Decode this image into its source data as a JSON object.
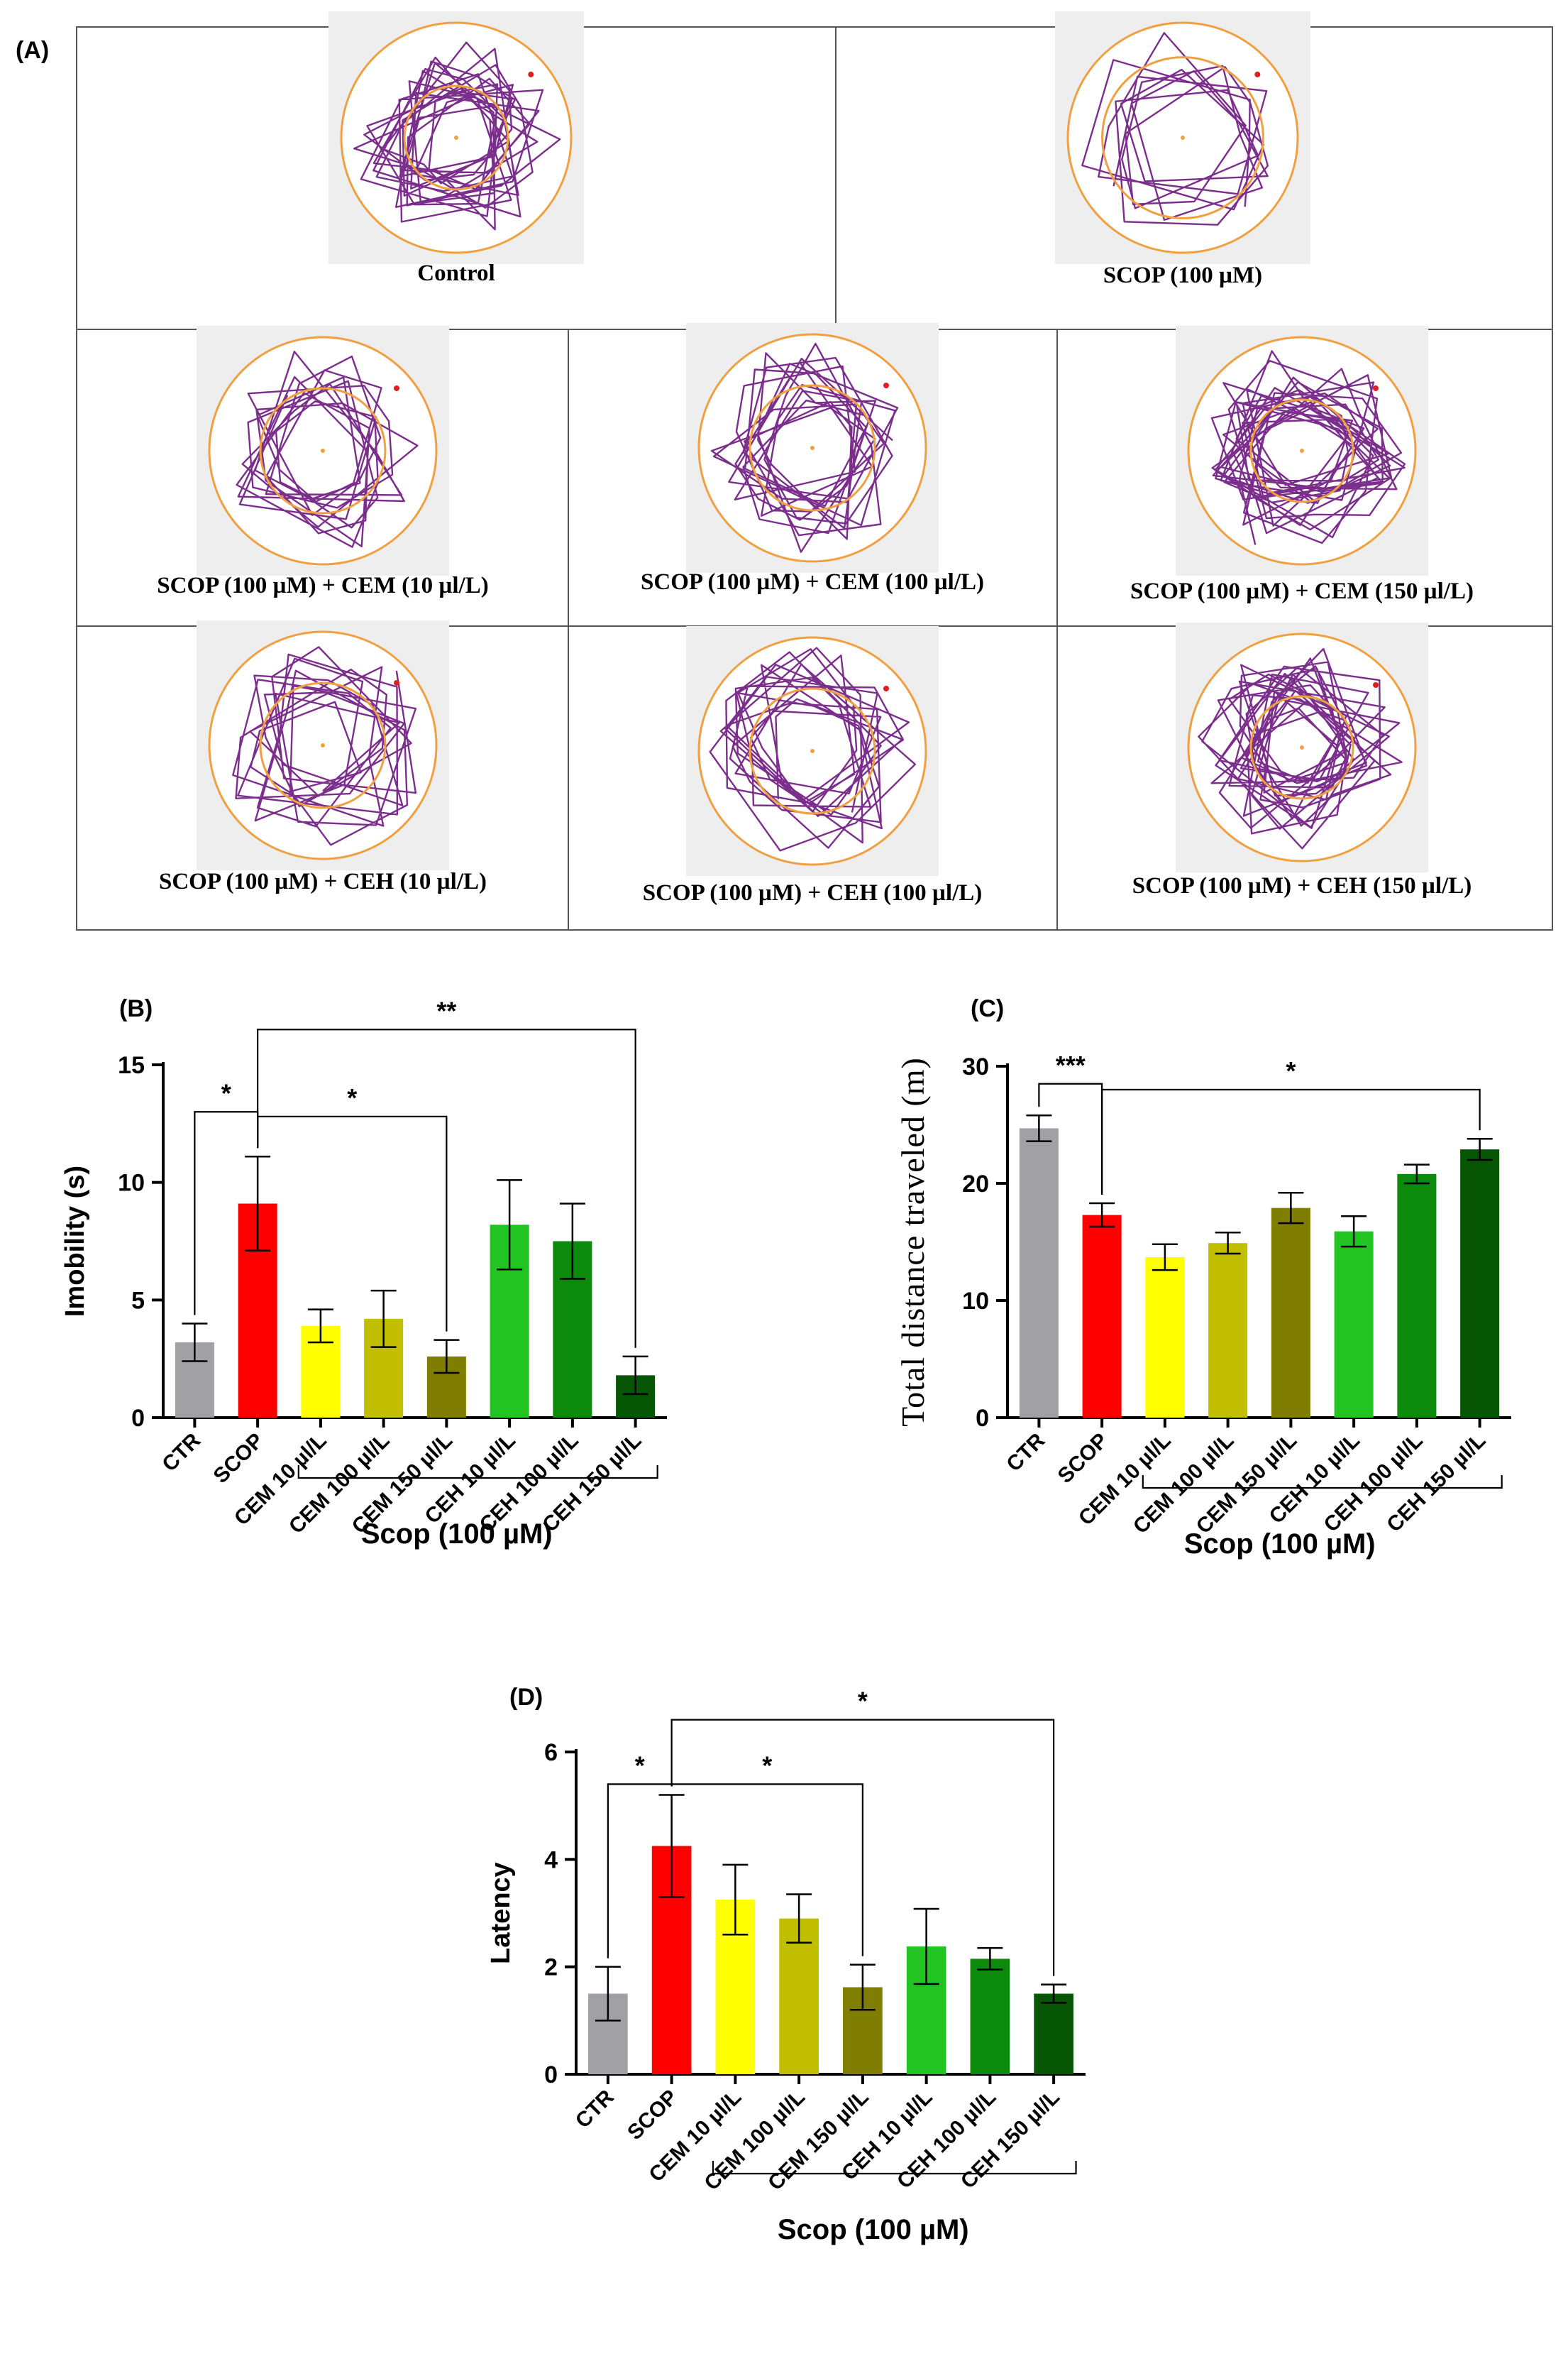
{
  "panel_a": {
    "label": "(A)",
    "tracks": [
      {
        "caption": "Control",
        "density": 90,
        "inner": 0.45
      },
      {
        "caption": "SCOP (100 µM)",
        "density": 40,
        "inner": 0.7
      },
      {
        "caption": "SCOP (100 µM) + CEM (10 µl/L)",
        "density": 60,
        "inner": 0.55
      },
      {
        "caption": "SCOP (100 µM) + CEM (100 µl/L)",
        "density": 70,
        "inner": 0.55
      },
      {
        "caption": "SCOP (100 µM) + CEM (150 µl/L)",
        "density": 110,
        "inner": 0.45
      },
      {
        "caption": "SCOP (100 µM) + CEH (10 µl/L)",
        "density": 60,
        "inner": 0.55
      },
      {
        "caption": "SCOP (100 µM) + CEH (100 µl/L)",
        "density": 70,
        "inner": 0.55
      },
      {
        "caption": "SCOP (100 µM) + CEH (150 µl/L)",
        "density": 105,
        "inner": 0.45
      }
    ]
  },
  "chart_data": [
    {
      "panel": "(B)",
      "type": "bar",
      "ylabel": "Imobility (s)",
      "ylim": [
        0,
        15
      ],
      "yticks": [
        0,
        5,
        10,
        15
      ],
      "categories": [
        "CTR",
        "SCOP",
        "CEM 10 µl/L",
        "CEM 100 µl/L",
        "CEM 150 µl/L",
        "CEH 10 µl/L",
        "CEH 100 µl/L",
        "CEH 150 µl/L"
      ],
      "values": [
        3.2,
        9.1,
        3.9,
        4.2,
        2.6,
        8.2,
        7.5,
        1.8
      ],
      "errors": [
        0.8,
        2.0,
        0.7,
        1.2,
        0.7,
        1.9,
        1.6,
        0.8
      ],
      "colors": [
        "#a0a0a5",
        "#ff0000",
        "#ffff00",
        "#c2bf00",
        "#7f7e00",
        "#22c422",
        "#0b8a0b",
        "#065606"
      ],
      "significance": [
        {
          "from": 0,
          "to": 1,
          "label": "*",
          "value": 13.0
        },
        {
          "from": 1,
          "to": 4,
          "label": "*",
          "value": 12.8
        },
        {
          "from": 1,
          "to": 7,
          "label": "**",
          "value": 16.5
        }
      ],
      "group_label": "Scop (100 µM)",
      "group_range": [
        2,
        7
      ]
    },
    {
      "panel": "(C)",
      "type": "bar",
      "ylabel": "Total distance traveled (m)",
      "ylim": [
        0,
        30
      ],
      "yticks": [
        0,
        10,
        20,
        30
      ],
      "categories": [
        "CTR",
        "SCOP",
        "CEM 10 µl/L",
        "CEM 100 µl/L",
        "CEM 150 µl/L",
        "CEH 10 µl/L",
        "CEH 100 µl/L",
        "CEH 150 µl/L"
      ],
      "values": [
        24.7,
        17.3,
        13.7,
        14.9,
        17.9,
        15.9,
        20.8,
        22.9
      ],
      "errors": [
        1.1,
        1.0,
        1.1,
        0.9,
        1.3,
        1.3,
        0.8,
        0.9
      ],
      "colors": [
        "#a0a0a5",
        "#ff0000",
        "#ffff00",
        "#c2bf00",
        "#7f7e00",
        "#22c422",
        "#0b8a0b",
        "#065606"
      ],
      "significance": [
        {
          "from": 0,
          "to": 1,
          "label": "***",
          "value": 28.5
        },
        {
          "from": 1,
          "to": 7,
          "label": "*",
          "value": 28.0
        }
      ],
      "group_label": "Scop (100 µM)",
      "group_range": [
        2,
        7
      ]
    },
    {
      "panel": "(D)",
      "type": "bar",
      "ylabel": "Latency",
      "ylim": [
        0,
        6
      ],
      "yticks": [
        0,
        2,
        4,
        6
      ],
      "categories": [
        "CTR",
        "SCOP",
        "CEM 10 µl/L",
        "CEM 100 µl/L",
        "CEM 150 µl/L",
        "CEH 10 µl/L",
        "CEH 100 µl/L",
        "CEH 150 µl/L"
      ],
      "values": [
        1.5,
        4.25,
        3.25,
        2.9,
        1.62,
        2.38,
        2.15,
        1.5
      ],
      "errors": [
        0.5,
        0.95,
        0.65,
        0.45,
        0.42,
        0.7,
        0.2,
        0.17
      ],
      "colors": [
        "#a0a0a5",
        "#ff0000",
        "#ffff00",
        "#c2bf00",
        "#7f7e00",
        "#22c422",
        "#0b8a0b",
        "#065606"
      ],
      "significance": [
        {
          "from": 0,
          "to": 1,
          "label": "*",
          "value": 5.4
        },
        {
          "from": 1,
          "to": 4,
          "label": "*",
          "value": 5.4
        },
        {
          "from": 1,
          "to": 7,
          "label": "*",
          "value": 6.6
        }
      ],
      "group_label": "Scop (100 µM)",
      "group_range": [
        2,
        7
      ]
    }
  ]
}
